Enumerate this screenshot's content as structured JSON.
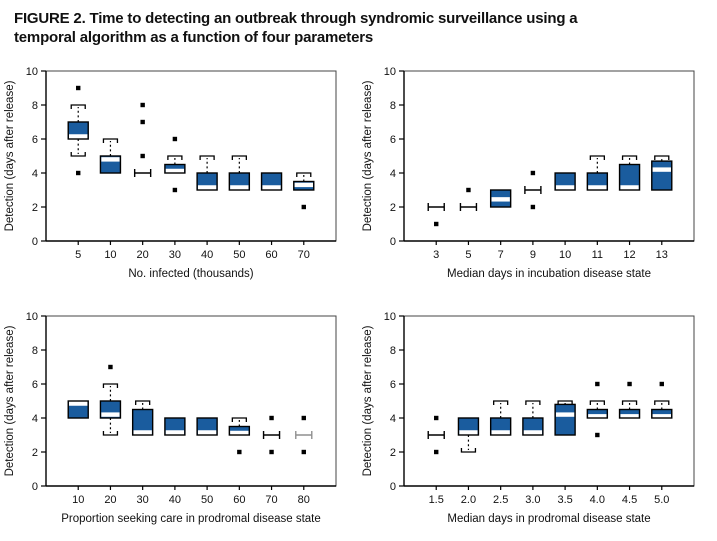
{
  "title": {
    "line1": "FIGURE 2. Time to detecting an outbreak through syndromic surveillance using a",
    "line2": "temporal algorithm as a function of four parameters"
  },
  "colors": {
    "box_fill": "#1a5c9e",
    "box_border": "#000000",
    "median_band": "#ffffff",
    "gray": "#8f8f8f",
    "text": "#111111",
    "background": "#ffffff"
  },
  "chart_data": [
    {
      "type": "box",
      "position": "top-left",
      "title": "",
      "xlabel": "No. infected (thousands)",
      "ylabel": "Detection (days after release)",
      "ylim": [
        0,
        10
      ],
      "yticks": [
        0,
        2,
        4,
        6,
        8,
        10
      ],
      "grid": false,
      "categories": [
        "5",
        "10",
        "20",
        "30",
        "40",
        "50",
        "60",
        "70"
      ],
      "boxes": [
        {
          "category": "5",
          "q1": 6,
          "median": 6.15,
          "q3": 7,
          "whisker_low": 5,
          "whisker_high": 8,
          "outliers": [
            9,
            4
          ]
        },
        {
          "category": "10",
          "q1": 4,
          "median": 4.8,
          "q3": 5,
          "whisker_high": 6,
          "outliers": []
        },
        {
          "category": "20",
          "collapsed": 4,
          "outliers": [
            8,
            7,
            5
          ]
        },
        {
          "category": "30",
          "q1": 4,
          "median": 4.12,
          "q3": 4.5,
          "whisker_high": 5,
          "outliers": [
            6,
            3
          ]
        },
        {
          "category": "40",
          "q1": 3,
          "median": 3.15,
          "q3": 4,
          "whisker_high": 5,
          "outliers": []
        },
        {
          "category": "50",
          "q1": 3,
          "median": 3.15,
          "q3": 4,
          "whisker_high": 5,
          "outliers": []
        },
        {
          "category": "60",
          "q1": 3,
          "median": 3.15,
          "q3": 4,
          "outliers": []
        },
        {
          "category": "70",
          "q1": 3,
          "median": 3.3,
          "q3": 3.5,
          "whisker_high": 4,
          "outliers": [
            2
          ]
        }
      ]
    },
    {
      "type": "box",
      "position": "top-right",
      "title": "",
      "xlabel": "Median days in incubation disease state",
      "ylabel": "Detection (days after release)",
      "ylim": [
        0,
        10
      ],
      "yticks": [
        0,
        2,
        4,
        6,
        8,
        10
      ],
      "grid": false,
      "categories": [
        "3",
        "5",
        "7",
        "9",
        "10",
        "11",
        "12",
        "13"
      ],
      "boxes": [
        {
          "category": "3",
          "collapsed": 2,
          "outliers": [
            1
          ]
        },
        {
          "category": "5",
          "collapsed": 2,
          "outliers": [
            3
          ]
        },
        {
          "category": "7",
          "q1": 2,
          "median": 2.45,
          "q3": 3,
          "outliers": []
        },
        {
          "category": "9",
          "collapsed": 3,
          "outliers": [
            4,
            2
          ]
        },
        {
          "category": "10",
          "q1": 3,
          "median": 3.15,
          "q3": 4,
          "outliers": []
        },
        {
          "category": "11",
          "q1": 3,
          "median": 3.15,
          "q3": 4,
          "whisker_high": 5,
          "outliers": []
        },
        {
          "category": "12",
          "q1": 3,
          "median": 3.15,
          "q3": 4.5,
          "whisker_high": 5,
          "outliers": []
        },
        {
          "category": "13",
          "q1": 3,
          "median": 4.2,
          "q3": 4.7,
          "whisker_high": 5,
          "outliers": []
        }
      ]
    },
    {
      "type": "box",
      "position": "bottom-left",
      "title": "",
      "xlabel": "Proportion seeking care in prodromal disease state",
      "ylabel": "Detection (days after release)",
      "ylim": [
        0,
        10
      ],
      "yticks": [
        0,
        2,
        4,
        6,
        8,
        10
      ],
      "grid": false,
      "categories": [
        "10",
        "20",
        "30",
        "40",
        "50",
        "60",
        "70",
        "80"
      ],
      "boxes": [
        {
          "category": "10",
          "q1": 4,
          "median": 4.85,
          "q3": 5,
          "outliers": []
        },
        {
          "category": "20",
          "q1": 4,
          "median": 4.2,
          "q3": 5,
          "whisker_low": 3,
          "whisker_high": 6,
          "outliers": [
            7
          ]
        },
        {
          "category": "30",
          "q1": 3,
          "median": 3.15,
          "q3": 4.5,
          "whisker_high": 5,
          "outliers": []
        },
        {
          "category": "40",
          "q1": 3,
          "median": 3.15,
          "q3": 4,
          "outliers": []
        },
        {
          "category": "50",
          "q1": 3,
          "median": 3.15,
          "q3": 4,
          "outliers": []
        },
        {
          "category": "60",
          "q1": 3,
          "median": 3.12,
          "q3": 3.5,
          "whisker_high": 4,
          "outliers": [
            2
          ]
        },
        {
          "category": "70",
          "collapsed": 3,
          "outliers": [
            4,
            2
          ]
        },
        {
          "category": "80",
          "collapsed": 3,
          "collapsed_gray": true,
          "outliers": [
            4,
            2
          ]
        }
      ]
    },
    {
      "type": "box",
      "position": "bottom-right",
      "title": "",
      "xlabel": "Median days in prodromal disease state",
      "ylabel": "Detection (days after release)",
      "ylim": [
        0,
        10
      ],
      "yticks": [
        0,
        2,
        4,
        6,
        8,
        10
      ],
      "grid": false,
      "categories": [
        "1.5",
        "2.0",
        "2.5",
        "3.0",
        "3.5",
        "4.0",
        "4.5",
        "5.0"
      ],
      "boxes": [
        {
          "category": "1.5",
          "collapsed": 3,
          "outliers": [
            4,
            2
          ]
        },
        {
          "category": "2.0",
          "q1": 3,
          "median": 3.15,
          "q3": 4,
          "whisker_low": 2,
          "outliers": []
        },
        {
          "category": "2.5",
          "q1": 3,
          "median": 3.15,
          "q3": 4,
          "whisker_high": 5,
          "outliers": []
        },
        {
          "category": "3.0",
          "q1": 3,
          "median": 3.15,
          "q3": 4,
          "whisker_high": 5,
          "outliers": []
        },
        {
          "category": "3.5",
          "q1": 3,
          "median": 4.2,
          "q3": 4.8,
          "whisker_high": 5,
          "outliers": []
        },
        {
          "category": "4.0",
          "q1": 4,
          "median": 4.1,
          "q3": 4.5,
          "whisker_high": 5,
          "outliers": [
            6,
            3
          ]
        },
        {
          "category": "4.5",
          "q1": 4,
          "median": 4.1,
          "q3": 4.5,
          "whisker_high": 5,
          "outliers": [
            6
          ]
        },
        {
          "category": "5.0",
          "q1": 4,
          "median": 4.1,
          "q3": 4.5,
          "whisker_high": 5,
          "outliers": [
            6
          ]
        }
      ]
    }
  ]
}
